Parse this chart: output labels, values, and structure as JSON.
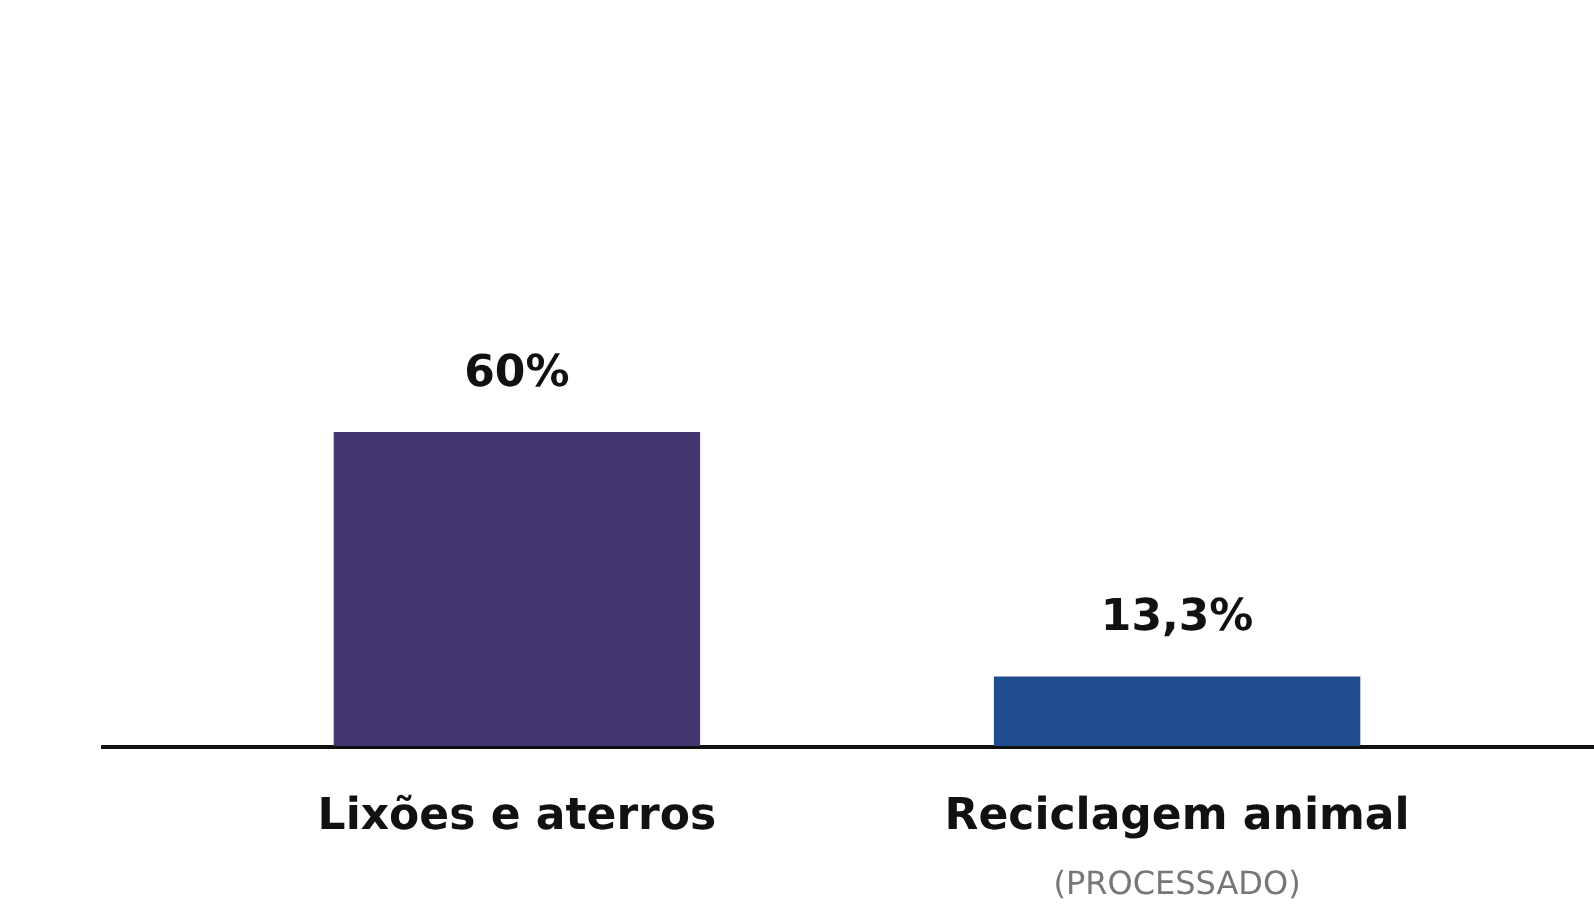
{
  "chart_data": {
    "type": "bar",
    "categories": [
      "Lixões e aterros",
      "Reciclagem animal"
    ],
    "values": [
      60,
      13.3
    ],
    "colors": [
      "#45366f",
      "#1f4c8c"
    ],
    "value_labels": [
      "60%",
      "13,3%"
    ],
    "annotations": [
      "(PROCESSADO)"
    ]
  }
}
